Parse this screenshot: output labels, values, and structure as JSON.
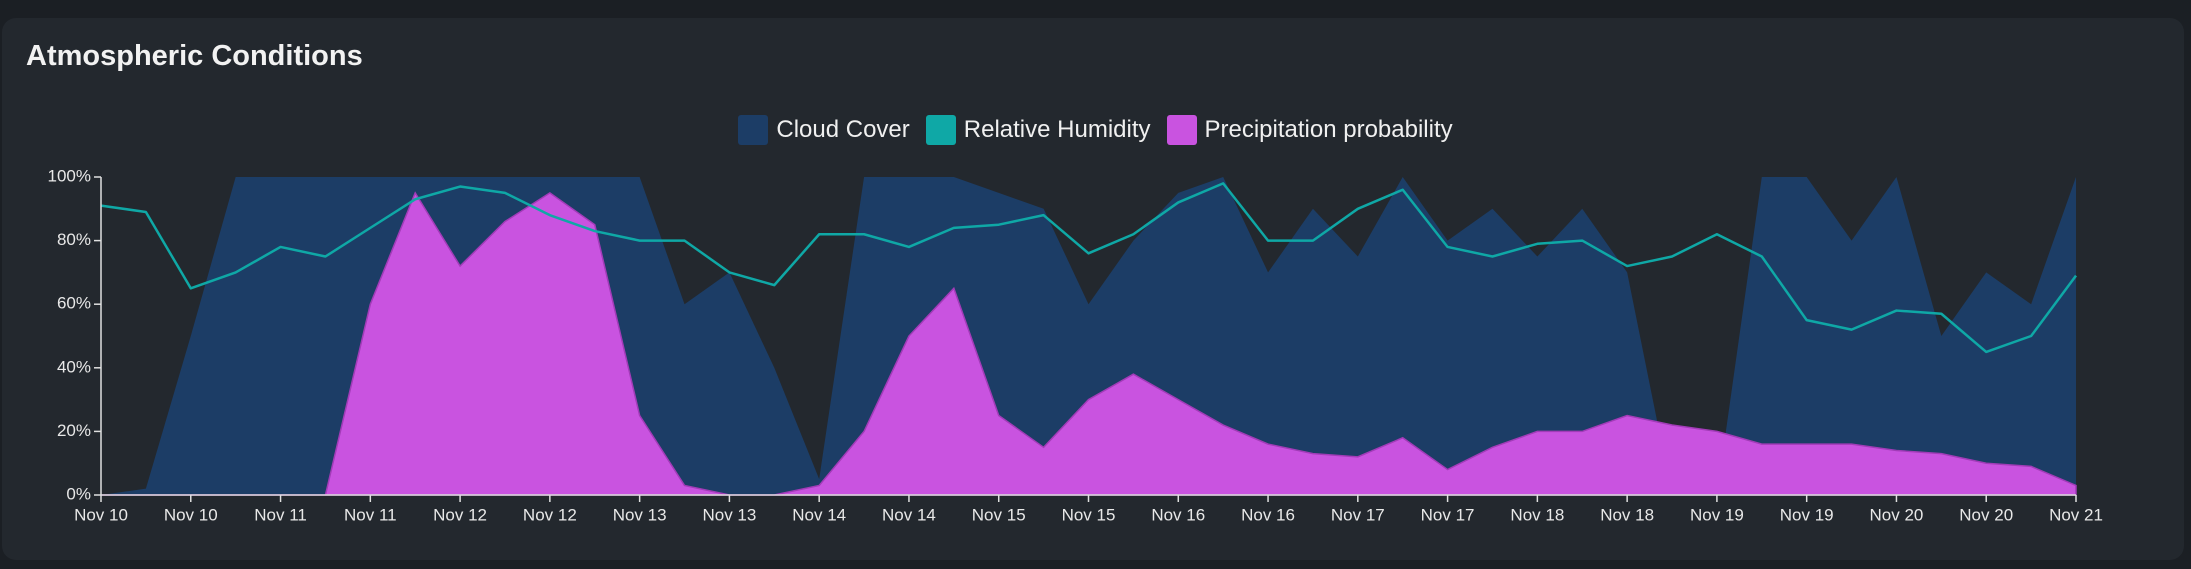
{
  "chart_data": {
    "type": "area",
    "title": "Atmospheric Conditions",
    "x": [
      0,
      6,
      12,
      18,
      24,
      30,
      36,
      42,
      48,
      54,
      60,
      66,
      72,
      78,
      84,
      90,
      96,
      102,
      108,
      114,
      120,
      126,
      132,
      138,
      144,
      150,
      156,
      162,
      168,
      174,
      180,
      186,
      192,
      198,
      204,
      210,
      216,
      222,
      228,
      234,
      240,
      246,
      252,
      258,
      264
    ],
    "xlim": [
      0,
      264
    ],
    "xticks": [
      {
        "value": 0,
        "label": "Nov 10"
      },
      {
        "value": 12,
        "label": "Nov 10"
      },
      {
        "value": 24,
        "label": "Nov 11"
      },
      {
        "value": 36,
        "label": "Nov 11"
      },
      {
        "value": 48,
        "label": "Nov 12"
      },
      {
        "value": 60,
        "label": "Nov 12"
      },
      {
        "value": 72,
        "label": "Nov 13"
      },
      {
        "value": 84,
        "label": "Nov 13"
      },
      {
        "value": 96,
        "label": "Nov 14"
      },
      {
        "value": 108,
        "label": "Nov 14"
      },
      {
        "value": 120,
        "label": "Nov 15"
      },
      {
        "value": 132,
        "label": "Nov 15"
      },
      {
        "value": 144,
        "label": "Nov 16"
      },
      {
        "value": 156,
        "label": "Nov 16"
      },
      {
        "value": 168,
        "label": "Nov 17"
      },
      {
        "value": 180,
        "label": "Nov 17"
      },
      {
        "value": 192,
        "label": "Nov 18"
      },
      {
        "value": 204,
        "label": "Nov 18"
      },
      {
        "value": 216,
        "label": "Nov 19"
      },
      {
        "value": 228,
        "label": "Nov 19"
      },
      {
        "value": 240,
        "label": "Nov 20"
      },
      {
        "value": 252,
        "label": "Nov 20"
      },
      {
        "value": 264,
        "label": "Nov 21"
      }
    ],
    "ylim": [
      0,
      100
    ],
    "yticks": [
      {
        "value": 0,
        "label": "0%"
      },
      {
        "value": 20,
        "label": "20%"
      },
      {
        "value": 40,
        "label": "40%"
      },
      {
        "value": 60,
        "label": "60%"
      },
      {
        "value": 80,
        "label": "80%"
      },
      {
        "value": 100,
        "label": "100%"
      }
    ],
    "series": [
      {
        "name": "Cloud Cover",
        "color": "#1c3d66",
        "style": "area",
        "values": [
          0,
          2,
          50,
          100,
          100,
          100,
          100,
          100,
          100,
          100,
          100,
          100,
          100,
          60,
          70,
          40,
          5,
          100,
          100,
          100,
          95,
          90,
          60,
          80,
          95,
          100,
          70,
          90,
          75,
          100,
          80,
          90,
          75,
          90,
          70,
          0,
          0,
          100,
          100,
          80,
          100,
          50,
          70,
          60,
          100
        ]
      },
      {
        "name": "Precipitation probability",
        "color": "#c953e0",
        "style": "area",
        "values": [
          0,
          0,
          0,
          0,
          0,
          0,
          60,
          95,
          72,
          86,
          95,
          85,
          25,
          3,
          0,
          0,
          3,
          20,
          50,
          65,
          25,
          15,
          30,
          38,
          30,
          22,
          16,
          13,
          12,
          18,
          8,
          15,
          20,
          20,
          25,
          22,
          20,
          16,
          16,
          16,
          14,
          13,
          10,
          9,
          3
        ]
      },
      {
        "name": "Relative Humidity",
        "color": "#0fa8a6",
        "style": "line",
        "values": [
          91,
          89,
          65,
          70,
          78,
          75,
          84,
          93,
          97,
          95,
          88,
          83,
          80,
          80,
          70,
          66,
          82,
          82,
          78,
          84,
          85,
          88,
          76,
          82,
          92,
          98,
          80,
          80,
          90,
          96,
          78,
          75,
          79,
          80,
          72,
          75,
          82,
          75,
          55,
          52,
          58,
          57,
          45,
          50,
          69
        ]
      }
    ]
  }
}
